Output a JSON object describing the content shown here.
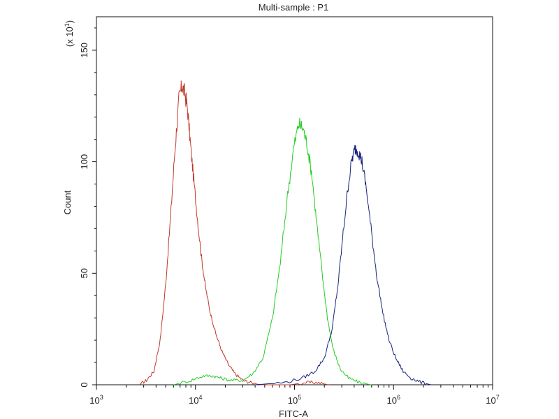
{
  "chart_data": {
    "type": "line",
    "title": "Multi-sample : P1",
    "xlabel": "FITC-A",
    "ylabel": "Count",
    "y_multiplier": {
      "prefix": "(x 10",
      "exp": "1",
      "suffix": ")"
    },
    "x_scale": "log",
    "xlim": [
      1000,
      10000000
    ],
    "ylim": [
      0,
      165
    ],
    "x_ticks": [
      {
        "value": 1000,
        "base": "10",
        "exp": "3"
      },
      {
        "value": 10000,
        "base": "10",
        "exp": "4"
      },
      {
        "value": 100000,
        "base": "10",
        "exp": "5"
      },
      {
        "value": 1000000,
        "base": "10",
        "exp": "6"
      },
      {
        "value": 10000000,
        "base": "10",
        "exp": "7"
      }
    ],
    "y_ticks": [
      {
        "value": 0,
        "label": "0"
      },
      {
        "value": 50,
        "label": "50"
      },
      {
        "value": 100,
        "label": "100"
      },
      {
        "value": 150,
        "label": "150"
      }
    ],
    "grid": false,
    "legend": "none",
    "series": [
      {
        "color": "#c0392b",
        "x": [
          2700,
          3200,
          3800,
          4400,
          5000,
          5600,
          6200,
          6800,
          7300,
          7800,
          8300,
          8900,
          9600,
          10500,
          11500,
          12600,
          14000,
          16000,
          18500,
          21500,
          25000,
          30000,
          36000,
          45000,
          60000,
          90000,
          130000,
          170000,
          220000
        ],
        "y": [
          0,
          2,
          6,
          20,
          45,
          75,
          105,
          128,
          134,
          131,
          124,
          108,
          92,
          74,
          57,
          44,
          33,
          23,
          15,
          9,
          5,
          2,
          1,
          0,
          0,
          0,
          1,
          1,
          0
        ]
      },
      {
        "color": "#22cc22",
        "x": [
          6000,
          9000,
          12000,
          15000,
          18000,
          23000,
          30000,
          38000,
          48000,
          60000,
          72000,
          85000,
          98000,
          110000,
          122000,
          135000,
          150000,
          168000,
          190000,
          215000,
          245000,
          290000,
          350000,
          450000,
          600000
        ],
        "y": [
          0,
          2,
          4,
          4,
          3,
          2,
          2,
          5,
          12,
          30,
          55,
          85,
          106,
          117,
          115,
          107,
          94,
          72,
          50,
          30,
          16,
          7,
          3,
          1,
          0
        ]
      },
      {
        "color": "#1a237e",
        "x": [
          40000,
          80000,
          120000,
          160000,
          200000,
          240000,
          275000,
          310000,
          345000,
          380000,
          410000,
          440000,
          480000,
          530000,
          600000,
          680000,
          780000,
          900000,
          1050000,
          1250000,
          1500000,
          1900000,
          2400000
        ],
        "y": [
          0,
          1,
          3,
          6,
          12,
          25,
          45,
          68,
          88,
          101,
          106,
          105,
          100,
          88,
          68,
          48,
          32,
          20,
          12,
          6,
          3,
          1,
          0
        ]
      }
    ]
  }
}
